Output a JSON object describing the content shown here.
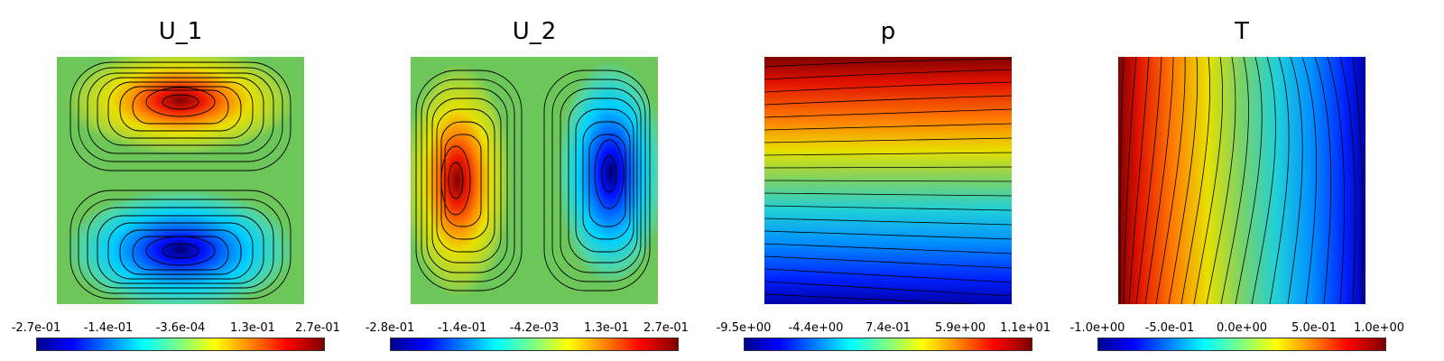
{
  "panels": [
    {
      "id": "u1",
      "title": "U_1",
      "ticks": [
        "-2.7e-01",
        "-1.4e-01",
        "-3.6e-04",
        "1.3e-01",
        "2.7e-01"
      ]
    },
    {
      "id": "u2",
      "title": "U_2",
      "ticks": [
        "-2.8e-01",
        "-1.4e-01",
        "-4.2e-03",
        "1.3e-01",
        "2.7e-01"
      ]
    },
    {
      "id": "p",
      "title": "p",
      "ticks": [
        "-9.5e+00",
        "-4.4e+00",
        "7.4e-01",
        "5.9e+00",
        "1.1e+01"
      ]
    },
    {
      "id": "t",
      "title": "T",
      "ticks": [
        "-1.0e+00",
        "-5.0e-01",
        "0.0e+00",
        "5.0e-01",
        "1.0e+00"
      ]
    }
  ],
  "colormap": "jet",
  "colors": {
    "low": "#00008f",
    "mid": "#80ff80",
    "high": "#800000",
    "contour": "#000000"
  }
}
